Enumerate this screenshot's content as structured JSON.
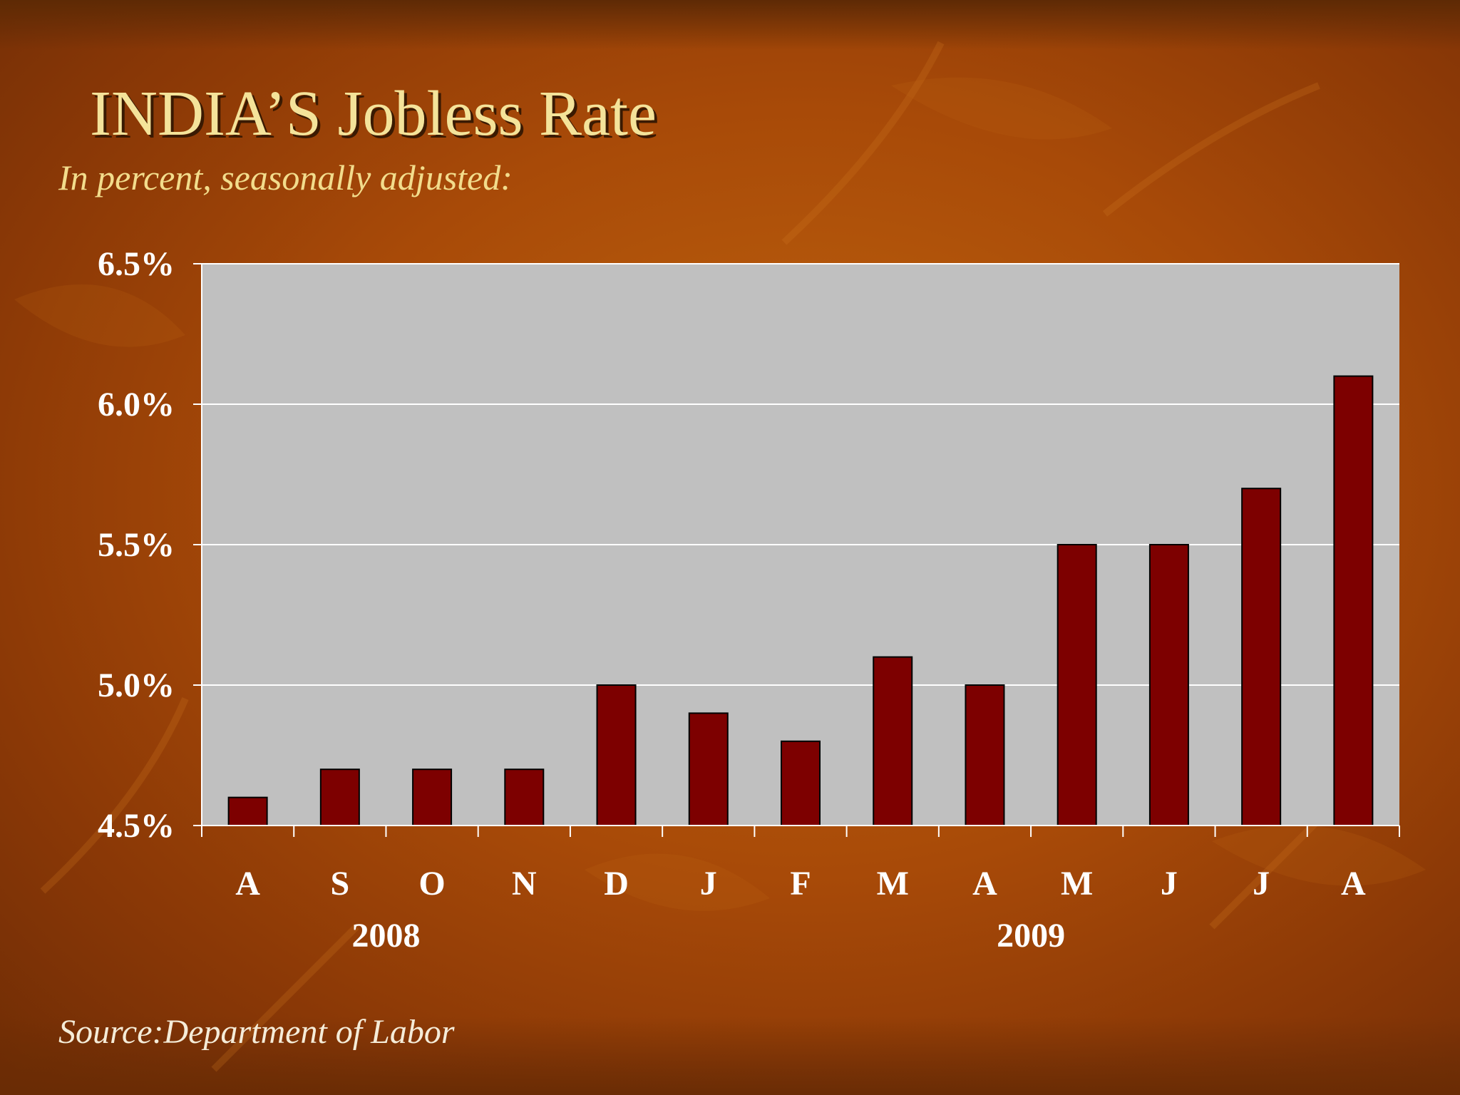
{
  "slide": {
    "title": "INDIA’S Jobless Rate",
    "subtitle": "In percent, seasonally adjusted:",
    "source": "Source:Department of Labor"
  },
  "colors": {
    "bar": "#7d0000",
    "plot_background": "#c0c0c0",
    "gridline": "#ffffff",
    "title": "#f4e39a",
    "text": "#ffffff"
  },
  "chart_data": {
    "type": "bar",
    "categories": [
      "A",
      "S",
      "O",
      "N",
      "D",
      "J",
      "F",
      "M",
      "A",
      "M",
      "J",
      "J",
      "A"
    ],
    "values": [
      4.6,
      4.7,
      4.7,
      4.7,
      5.0,
      4.9,
      4.8,
      5.1,
      5.0,
      5.5,
      5.5,
      5.7,
      6.1
    ],
    "year_labels": [
      {
        "label": "2008",
        "from": 0,
        "to": 3
      },
      {
        "label": "2009",
        "from": 5,
        "to": 12
      }
    ],
    "y_ticks": [
      "4.5%",
      "5.0%",
      "5.5%",
      "6.0%",
      "6.5%"
    ],
    "ylim": [
      4.5,
      6.5
    ],
    "grid": true,
    "legend": "none"
  }
}
